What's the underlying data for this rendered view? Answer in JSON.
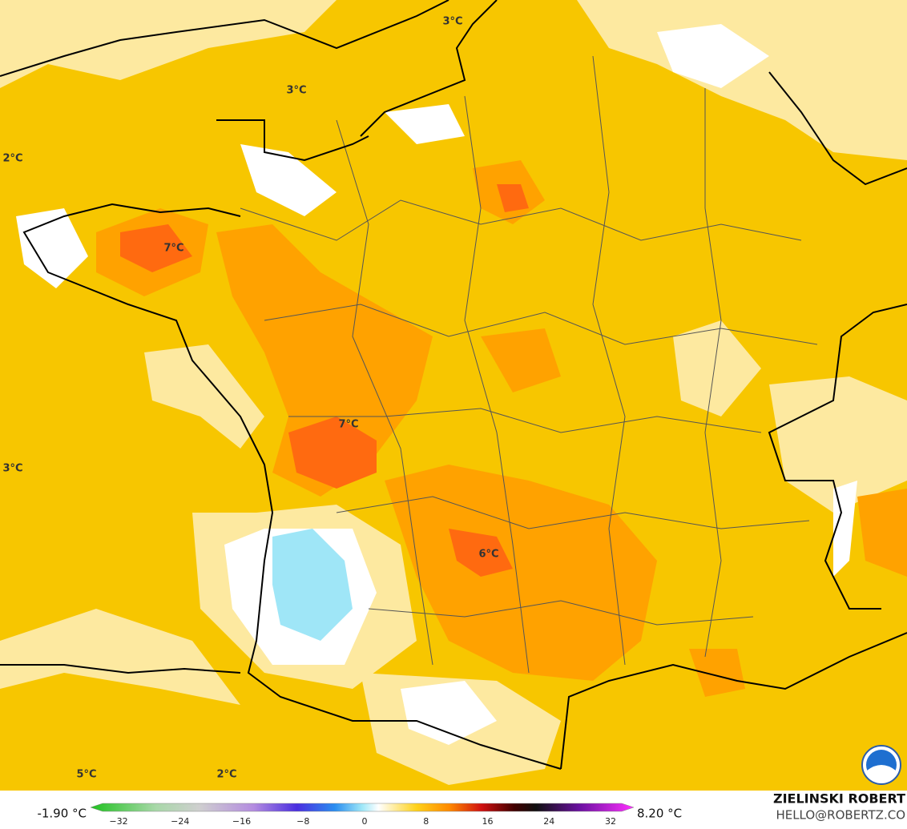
{
  "map": {
    "labels": [
      "3°C",
      "3°C",
      "2°C",
      "7°C",
      "7°C",
      "3°C",
      "6°C",
      "5°C",
      "2°C"
    ]
  },
  "legend": {
    "min_label": "-1.90 °C",
    "max_label": "8.20 °C",
    "ticks": [
      "−32",
      "−24",
      "−16",
      "−8",
      "0",
      "8",
      "16",
      "24",
      "32"
    ]
  },
  "credits": {
    "author": "ZIELINSKI ROBERT",
    "email": "HELLO@ROBERTZ.CO"
  }
}
